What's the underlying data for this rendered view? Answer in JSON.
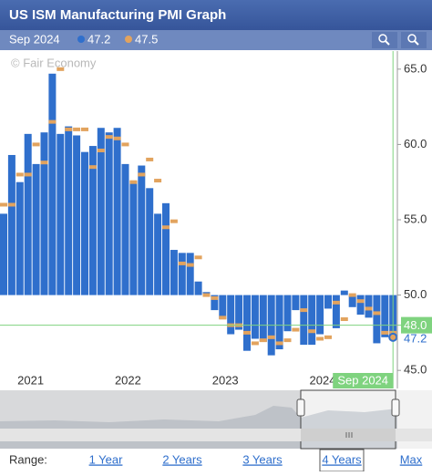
{
  "chart_data": {
    "type": "bar",
    "title": "US ISM Manufacturing PMI Graph",
    "watermark": "© Fair Economy",
    "categories": [
      null,
      null,
      null,
      null,
      "2021",
      null,
      null,
      null,
      null,
      null,
      null,
      null,
      null,
      null,
      null,
      null,
      "2022",
      null,
      null,
      null,
      null,
      null,
      null,
      null,
      null,
      null,
      null,
      null,
      "2023",
      null,
      null,
      null,
      null,
      null,
      null,
      null,
      null,
      null,
      null,
      null,
      "2024",
      null,
      null,
      null,
      null,
      null,
      null,
      null,
      "Sep 2024"
    ],
    "series": [
      {
        "color": "#2f6fcc",
        "values": [
          55.4,
          59.3,
          57.5,
          60.7,
          58.7,
          60.8,
          64.7,
          60.7,
          61.2,
          60.6,
          59.5,
          59.9,
          61.1,
          60.8,
          61.1,
          58.7,
          57.6,
          58.6,
          57.1,
          55.4,
          56.1,
          53.0,
          52.8,
          52.8,
          50.9,
          50.2,
          49.0,
          48.4,
          47.4,
          47.7,
          46.3,
          47.1,
          46.9,
          46.0,
          46.4,
          47.6,
          49.0,
          46.7,
          46.7,
          47.4,
          49.1,
          47.8,
          50.3,
          49.2,
          48.7,
          48.5,
          46.8,
          47.2,
          47.2
        ]
      },
      {
        "color": "#e2a35e",
        "values": [
          56.0,
          56.0,
          58.0,
          58.0,
          60.0,
          58.8,
          61.5,
          65.0,
          61.0,
          61.0,
          61.0,
          58.5,
          59.6,
          60.5,
          60.4,
          60.0,
          57.5,
          58.0,
          59.0,
          57.6,
          54.5,
          54.9,
          52.1,
          52.0,
          52.5,
          50.0,
          49.8,
          48.5,
          48.0,
          48.0,
          47.5,
          46.8,
          47.0,
          47.2,
          46.8,
          47.0,
          47.7,
          49.0,
          47.6,
          47.1,
          47.2,
          49.5,
          48.4,
          50.0,
          49.6,
          49.1,
          48.8,
          47.5,
          47.5
        ]
      }
    ],
    "baseline": 50,
    "ylim": [
      43.8,
      66.2
    ],
    "yticks": [
      {
        "value": 45,
        "label": "45.0"
      },
      {
        "value": 50,
        "label": "50.0"
      },
      {
        "value": 55,
        "label": "55.0"
      },
      {
        "value": 60,
        "label": "60.0"
      },
      {
        "value": 65,
        "label": "65.0"
      }
    ],
    "crosshair": {
      "value": 48,
      "label": "48.0"
    },
    "grid": false,
    "range_selector": {
      "label": "Range:",
      "options": [
        "1 Year",
        "2 Years",
        "3 Years",
        "4 Years",
        "Max"
      ],
      "selected": 3
    }
  }
}
